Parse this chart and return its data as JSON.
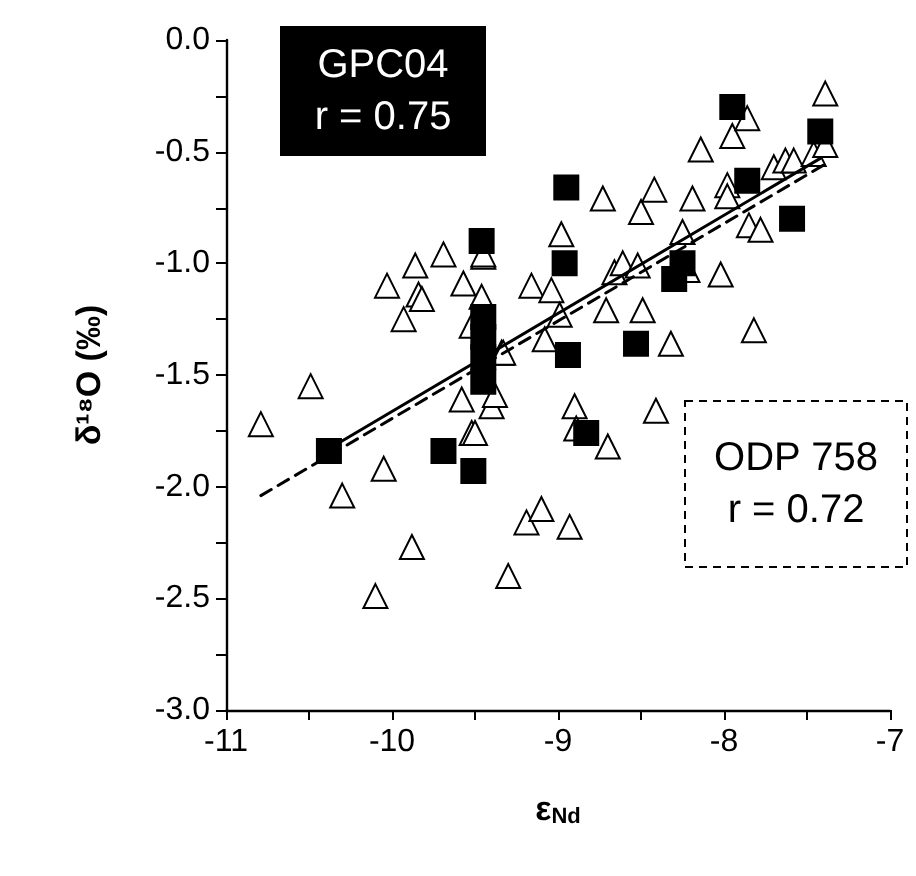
{
  "chart_data": {
    "type": "scatter",
    "xlabel": "ε$_{Nd}$",
    "ylabel": "δ¹⁸O (‰)",
    "xlim": [
      -11,
      -7
    ],
    "xticks": [
      -11,
      {
        "value": -10.5,
        "label": null
      },
      -10,
      {
        "value": -9.5,
        "label": null
      },
      -9,
      {
        "value": -8.5,
        "label": null
      },
      -8,
      {
        "value": -7.5,
        "label": null
      },
      -7
    ],
    "ylim": [
      -3,
      0
    ],
    "yticks": [
      {
        "value": -3,
        "label": "-3.0"
      },
      {
        "value": -2.75,
        "label": null
      },
      {
        "value": -2.5,
        "label": "-2.5"
      },
      {
        "value": -2.25,
        "label": null
      },
      {
        "value": -2,
        "label": "-2.0"
      },
      {
        "value": -1.75,
        "label": null
      },
      {
        "value": -1.5,
        "label": "-1.5"
      },
      {
        "value": -1.25,
        "label": null
      },
      {
        "value": -1,
        "label": "-1.0"
      },
      {
        "value": -0.75,
        "label": null
      },
      {
        "value": -0.5,
        "label": "-0.5"
      },
      {
        "value": -0.25,
        "label": null
      },
      {
        "value": 0,
        "label": "0.0"
      }
    ],
    "grid": false,
    "annotations": [
      "GPC04\nr = 0.75",
      "ODP 758\nr = 0.72"
    ],
    "series": [
      {
        "marker": "triangle",
        "color": "#ffffff",
        "x": [
          -10.79,
          -10.49,
          -10.3,
          -10.1,
          -10.05,
          -9.88,
          -10.03,
          -9.93,
          -9.86,
          -9.84,
          -9.82,
          -9.69,
          -9.57,
          -9.52,
          -9.58,
          -9.52,
          -9.5,
          -9.45,
          -9.46,
          -9.45,
          -9.4,
          -9.38,
          -9.34,
          -9.33,
          -9.3,
          -9.19,
          -9.16,
          -9.1,
          -9.08,
          -9.04,
          -8.99,
          -8.98,
          -8.93,
          -8.9,
          -8.89,
          -8.73,
          -8.71,
          -8.7,
          -8.66,
          -8.61,
          -8.52,
          -8.5,
          -8.49,
          -8.42,
          -8.41,
          -8.32,
          -8.25,
          -8.22,
          -8.19,
          -8.14,
          -8.02,
          -7.98,
          -7.98,
          -7.95,
          -7.86,
          -7.85,
          -7.82,
          -7.78,
          -7.7,
          -7.63,
          -7.58,
          -7.46,
          -7.39,
          -7.39
        ],
        "values": [
          -1.72,
          -1.55,
          -2.04,
          -2.49,
          -1.92,
          -2.27,
          -1.1,
          -1.25,
          -1.01,
          -1.14,
          -1.16,
          -0.96,
          -1.09,
          -1.28,
          -1.61,
          -1.76,
          -1.76,
          -0.97,
          -1.15,
          -0.96,
          -1.64,
          -1.59,
          -1.4,
          -1.4,
          -2.4,
          -2.16,
          -1.1,
          -2.1,
          -1.34,
          -1.12,
          -1.23,
          -0.87,
          -2.18,
          -1.64,
          -1.74,
          -0.71,
          -1.21,
          -1.82,
          -1.04,
          -1.0,
          -1.01,
          -0.77,
          -1.21,
          -0.67,
          -1.66,
          -1.36,
          -0.86,
          -1.03,
          -0.71,
          -0.49,
          -1.05,
          -0.65,
          -0.7,
          -0.43,
          -0.35,
          -0.83,
          -1.3,
          -0.85,
          -0.57,
          -0.54,
          -0.54,
          -0.51,
          -0.24,
          -0.47
        ]
      },
      {
        "marker": "square",
        "color": "#000000",
        "x": [
          -10.38,
          -9.69,
          -9.51,
          -9.46,
          -9.45,
          -9.45,
          -9.45,
          -9.45,
          -8.96,
          -8.95,
          -8.94,
          -8.83,
          -8.53,
          -8.3,
          -8.25,
          -7.95,
          -7.86,
          -7.59,
          -7.42
        ],
        "values": [
          -1.84,
          -1.84,
          -1.93,
          -0.9,
          -1.24,
          -1.33,
          -1.42,
          -1.53,
          -1.0,
          -0.66,
          -1.41,
          -1.76,
          -1.36,
          -1.07,
          -1.0,
          -0.3,
          -0.63,
          -0.8,
          -0.41
        ]
      },
      {
        "type": "line",
        "color": "#000000",
        "line_style": "solid",
        "x": [
          -10.38,
          -7.42
        ],
        "values": [
          -1.83,
          -0.53
        ]
      },
      {
        "type": "line",
        "color": "#000000",
        "line_style": "dashed",
        "x": [
          -10.79,
          -7.4
        ],
        "values": [
          -2.04,
          -0.56
        ]
      }
    ]
  }
}
